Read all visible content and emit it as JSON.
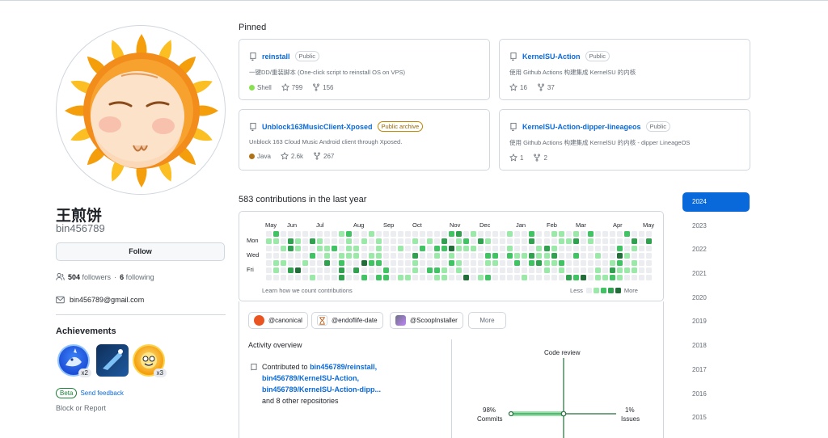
{
  "profile": {
    "full_name": "王煎饼",
    "login": "bin456789",
    "follow_label": "Follow",
    "followers_count": "504",
    "followers_label": "followers",
    "following_count": "6",
    "following_label": "following",
    "separator": "·",
    "email": "bin456789@gmail.com"
  },
  "achievements": {
    "title": "Achievements",
    "badges": [
      {
        "name": "pull-shark",
        "count": "x2"
      },
      {
        "name": "starstruck",
        "count": ""
      },
      {
        "name": "quickdraw",
        "count": "x3"
      }
    ],
    "beta_label": "Beta",
    "feedback_label": "Send feedback"
  },
  "block_report": "Block or Report",
  "pinned": {
    "title": "Pinned",
    "repos": [
      {
        "name": "reinstall",
        "visibility": "Public",
        "description": "一键DD/重装脚本 (One-click script to reinstall OS on VPS)",
        "language": "Shell",
        "language_color": "#89e051",
        "stars": "799",
        "forks": "156"
      },
      {
        "name": "KernelSU-Action",
        "visibility": "Public",
        "description": "使用 Github Actions 构建集成 KernelSU 的内核",
        "language": "",
        "language_color": "",
        "stars": "16",
        "forks": "37"
      },
      {
        "name": "Unblock163MusicClient-Xposed",
        "visibility": "Public archive",
        "description": "Unblock 163 Cloud Music Android client through Xposed.",
        "language": "Java",
        "language_color": "#b07219",
        "stars": "2.6k",
        "forks": "267"
      },
      {
        "name": "KernelSU-Action-dipper-lineageos",
        "visibility": "Public",
        "description": "使用 Github Actions 构建集成 KernelSU 的内核 - dipper LineageOS",
        "language": "",
        "language_color": "",
        "stars": "1",
        "forks": "2"
      }
    ]
  },
  "contributions": {
    "title": "583 contributions in the last year",
    "months": [
      "May",
      "Jun",
      "Jul",
      "Aug",
      "Sep",
      "Oct",
      "Nov",
      "Dec",
      "Jan",
      "Feb",
      "Mar",
      "Apr",
      "May"
    ],
    "weekdays": [
      "Mon",
      "Wed",
      "Fri"
    ],
    "learn_label": "Learn how we count contributions",
    "less_label": "Less",
    "more_label": "More",
    "level_colors": [
      "#ebedf0",
      "#9be9a8",
      "#40c463",
      "#30a14e",
      "#216e39"
    ]
  },
  "organizations": [
    {
      "name": "@canonical",
      "color": "#e95420"
    },
    {
      "name": "@endoflife-date",
      "color": "#f4d35e"
    },
    {
      "name": "@ScoopInstaller",
      "color": "#8b6fb5"
    }
  ],
  "more_label": "More",
  "activity": {
    "title": "Activity overview",
    "contributed_prefix": "Contributed to",
    "repos": [
      "bin456789/reinstall,",
      "bin456789/KernelSU-Action,",
      "bin456789/KernelSU-Action-dipp..."
    ],
    "other_text": "and 8 other repositories",
    "axes": {
      "top": "Code review",
      "left_pct": "98%",
      "left_label": "Commits",
      "right_pct": "1%",
      "right_label": "Issues"
    }
  },
  "years": [
    "2024",
    "2023",
    "2022",
    "2021",
    "2020",
    "2019",
    "2018",
    "2017",
    "2016",
    "2015"
  ],
  "active_year": "2024"
}
